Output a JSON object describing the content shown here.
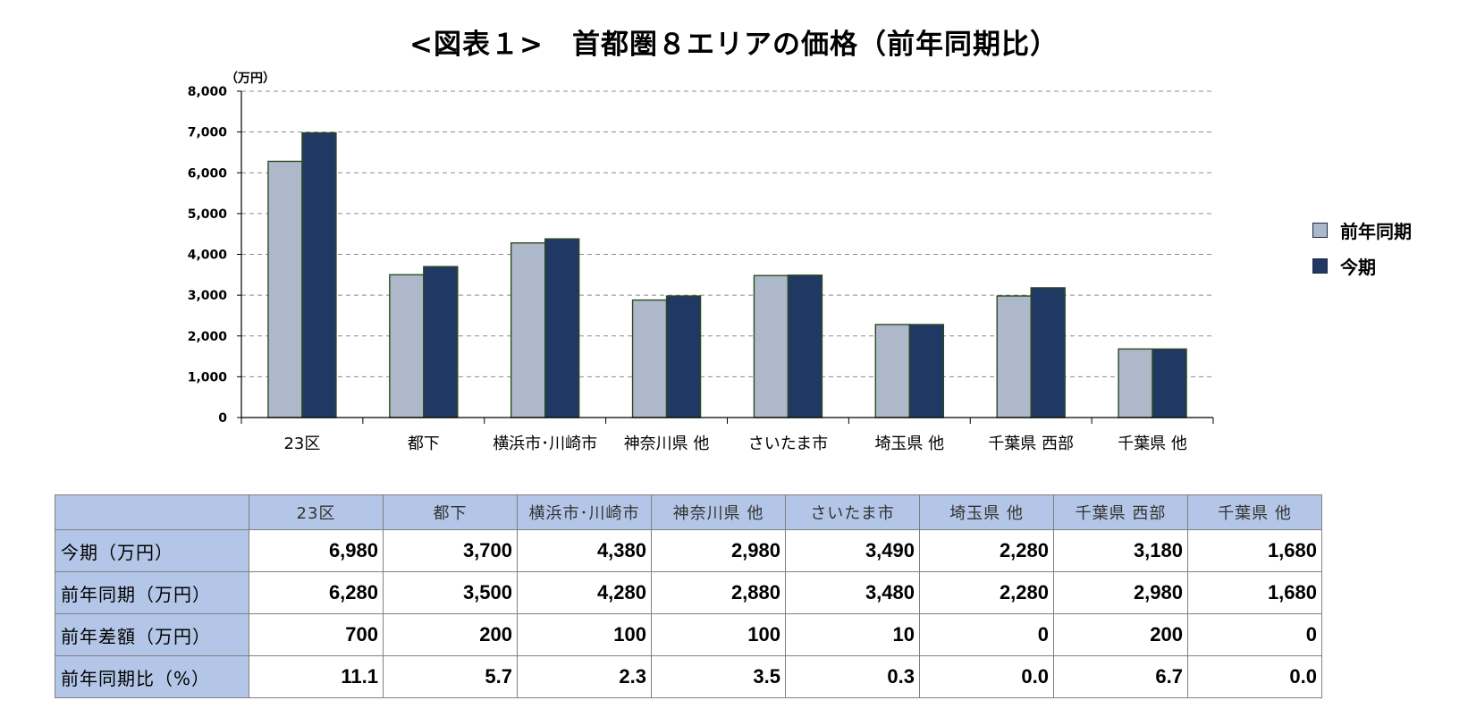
{
  "title": "<図表１>　首都圏８エリアの価格（前年同期比）",
  "chart_data": {
    "type": "bar",
    "unit": "（万円）",
    "categories": [
      "23区",
      "都下",
      "横浜市･川崎市",
      "神奈川県 他",
      "さいたま市",
      "埼玉県 他",
      "千葉県 西部",
      "千葉県 他"
    ],
    "series": [
      {
        "name": "前年同期",
        "color": "#adb9ca",
        "values": [
          6280,
          3500,
          4280,
          2880,
          3480,
          2280,
          2980,
          1680
        ]
      },
      {
        "name": "今期",
        "color": "#203864",
        "values": [
          6980,
          3700,
          4380,
          2980,
          3490,
          2280,
          3180,
          1680
        ]
      }
    ],
    "ylim": [
      0,
      8000
    ],
    "yticks": [
      0,
      1000,
      2000,
      3000,
      4000,
      5000,
      6000,
      7000,
      8000
    ],
    "ytick_labels": [
      "0",
      "1,000",
      "2,000",
      "3,000",
      "4,000",
      "5,000",
      "6,000",
      "7,000",
      "8,000"
    ],
    "grid": true,
    "legend_position": "right"
  },
  "table": {
    "headers": [
      "23区",
      "都下",
      "横浜市･川崎市",
      "神奈川県 他",
      "さいたま市",
      "埼玉県 他",
      "千葉県 西部",
      "千葉県 他"
    ],
    "rows": [
      {
        "label": "今期（万円）",
        "cells": [
          "6,980",
          "3,700",
          "4,380",
          "2,980",
          "3,490",
          "2,280",
          "3,180",
          "1,680"
        ]
      },
      {
        "label": "前年同期（万円）",
        "cells": [
          "6,280",
          "3,500",
          "4,280",
          "2,880",
          "3,480",
          "2,280",
          "2,980",
          "1,680"
        ]
      },
      {
        "label": "前年差額（万円）",
        "cells": [
          "700",
          "200",
          "100",
          "100",
          "10",
          "0",
          "200",
          "0"
        ]
      },
      {
        "label": "前年同期比（%）",
        "cells": [
          "11.1",
          "5.7",
          "2.3",
          "3.5",
          "0.3",
          "0.0",
          "6.7",
          "0.0"
        ]
      }
    ]
  }
}
